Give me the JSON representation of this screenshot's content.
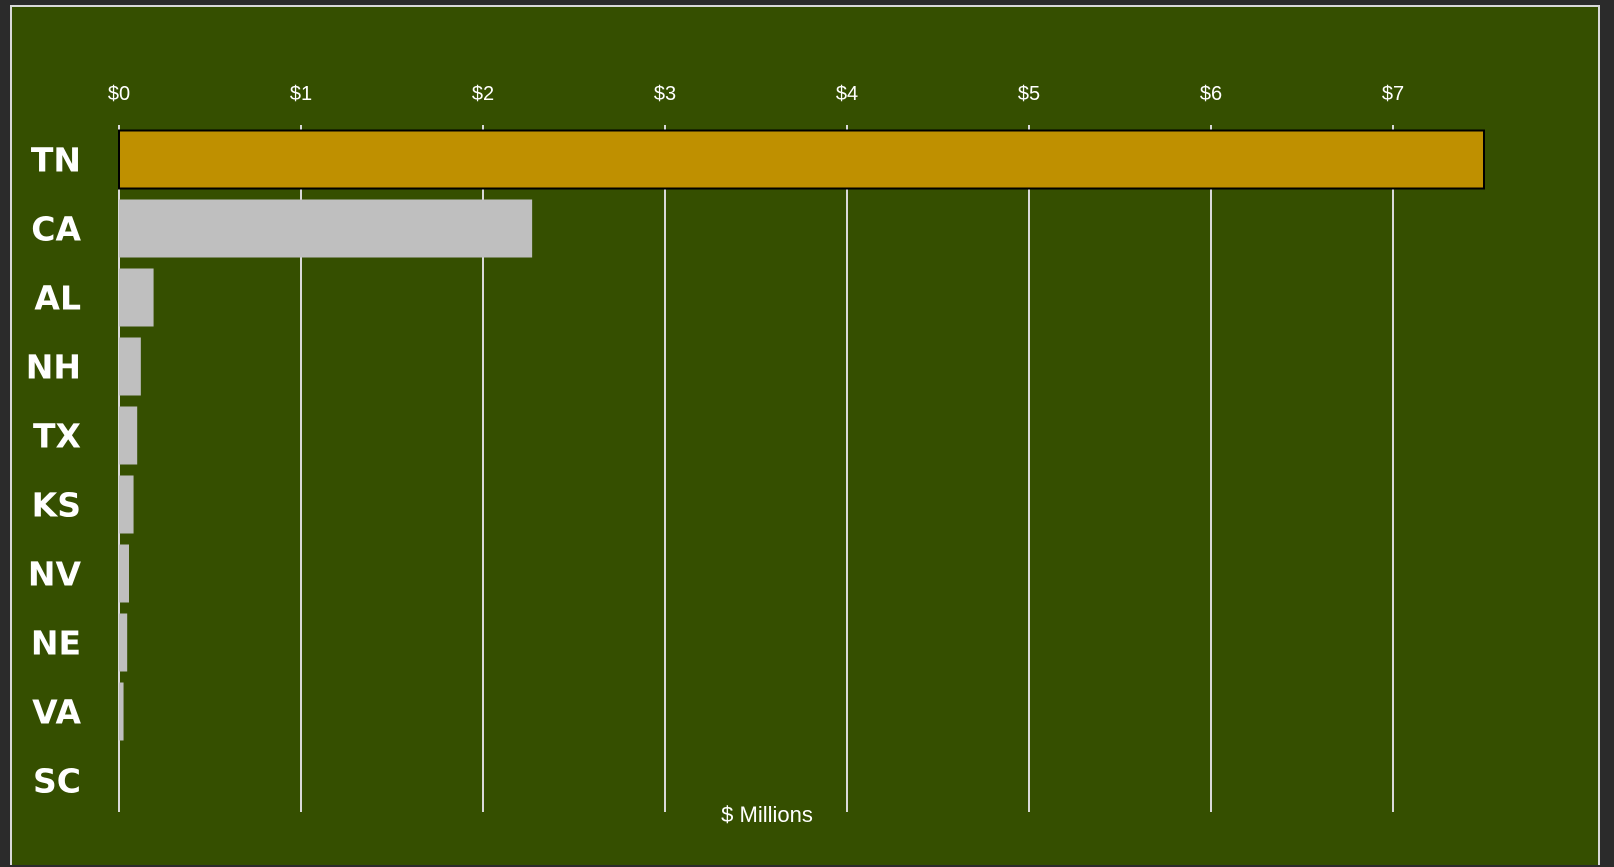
{
  "chart_data": {
    "type": "bar",
    "orientation": "horizontal",
    "categories": [
      "TN",
      "CA",
      "AL",
      "NH",
      "TX",
      "KS",
      "NV",
      "NE",
      "VA",
      "SC"
    ],
    "values": [
      7.5,
      2.27,
      0.19,
      0.12,
      0.1,
      0.08,
      0.055,
      0.045,
      0.025,
      0.0
    ],
    "xlabel": "$ Millions",
    "ylabel": "",
    "title": "",
    "xlim": [
      0,
      7.5
    ],
    "x_ticks": [
      0,
      1,
      2,
      3,
      4,
      5,
      6,
      7
    ],
    "x_tick_labels": [
      "$0",
      "$1",
      "$2",
      "$3",
      "$4",
      "$5",
      "$6",
      "$7"
    ],
    "x_axis_position": "top",
    "grid": true,
    "colors": {
      "background": "#354f00",
      "highlight_bar": "#bf9000",
      "bar": "#bfbfbf",
      "gridline": "#d9d9d9",
      "text": "#ffffff",
      "frame_border": "#d9d9d9"
    },
    "highlight_index": 0
  }
}
